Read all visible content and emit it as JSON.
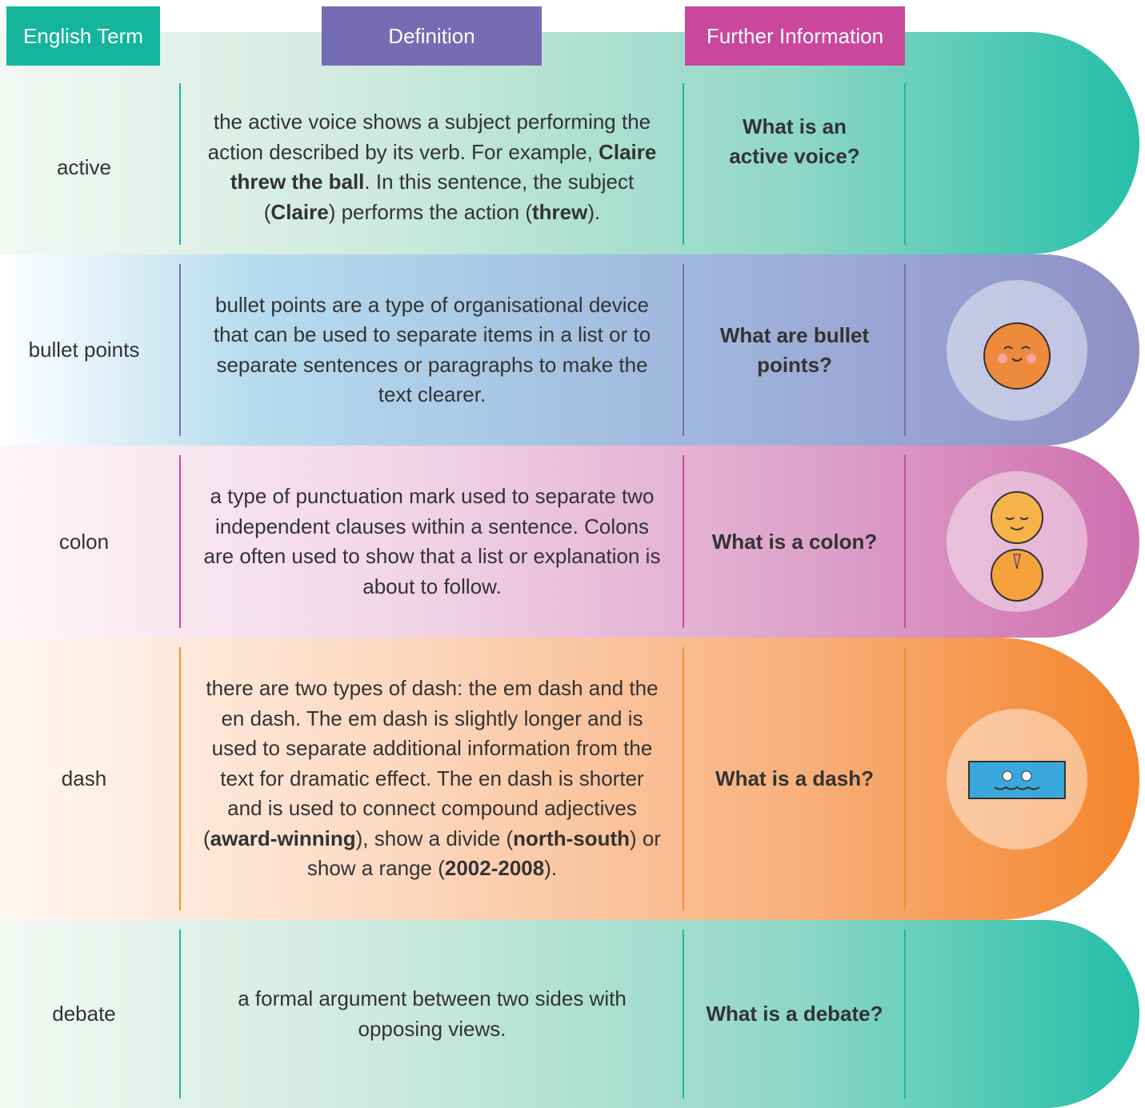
{
  "header": {
    "english_term": "English Term",
    "definition": "Definition",
    "further_information": "Further Information"
  },
  "rows": [
    {
      "term": "active",
      "definition": [
        {
          "text": "the active voice shows a subject performing the action described by its verb. For example, ",
          "bold": false
        },
        {
          "text": "Claire threw the ball",
          "bold": true
        },
        {
          "text": ". In this sentence, the subject (",
          "bold": false
        },
        {
          "text": "Claire",
          "bold": true
        },
        {
          "text": ") performs the action (",
          "bold": false
        },
        {
          "text": "threw",
          "bold": true
        },
        {
          "text": ").",
          "bold": false
        }
      ],
      "question": "What is an active voice?"
    },
    {
      "term": "bullet points",
      "definition": [
        {
          "text": "bullet points are a type of organisational device that can be used to separate items in a list or to separate sentences or paragraphs to make the text clearer.",
          "bold": false
        }
      ],
      "question": "What are bullet points?"
    },
    {
      "term": "colon",
      "definition": [
        {
          "text": "a type of punctuation mark used to separate two independent clauses within a sentence. Colons are often used to show that a list or explanation is about to follow.",
          "bold": false
        }
      ],
      "question": "What is a colon?"
    },
    {
      "term": "dash",
      "definition": [
        {
          "text": "there are two types of dash: the em dash and the en dash. The em dash is slightly longer and is used to separate additional information from the text for dramatic effect. The en dash is shorter and is used to connect compound adjectives (",
          "bold": false
        },
        {
          "text": "award-winning",
          "bold": true
        },
        {
          "text": "), show a divide (",
          "bold": false
        },
        {
          "text": "north-south",
          "bold": true
        },
        {
          "text": ") or show a range (",
          "bold": false
        },
        {
          "text": "2002-2008",
          "bold": true
        },
        {
          "text": ").",
          "bold": false
        }
      ],
      "question": "What is a dash?"
    },
    {
      "term": "debate",
      "definition": [
        {
          "text": "a formal argument between two sides with opposing views.",
          "bold": false
        }
      ],
      "question": "What is a debate?"
    }
  ]
}
